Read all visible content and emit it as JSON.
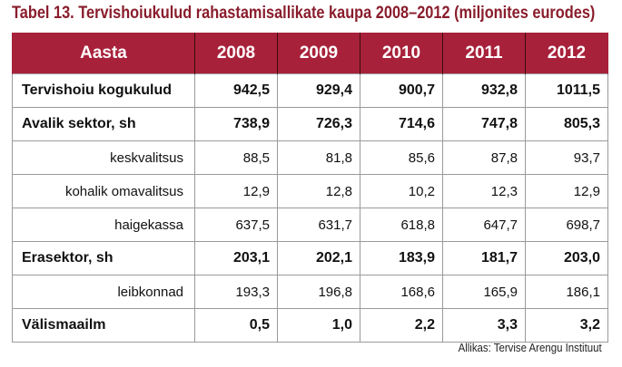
{
  "title": "Tabel 13. Tervishoiukulud rahastamisallikate kaupa 2008–2012 (miljonites eurodes)",
  "header": [
    "Aasta",
    "2008",
    "2009",
    "2010",
    "2011",
    "2012"
  ],
  "rows": [
    {
      "label": "Tervishoiu kogukulud",
      "bold": true,
      "values": [
        "942,5",
        "929,4",
        "900,7",
        "932,8",
        "1011,5"
      ]
    },
    {
      "label": "Avalik sektor, sh",
      "bold": true,
      "values": [
        "738,9",
        "726,3",
        "714,6",
        "747,8",
        "805,3"
      ]
    },
    {
      "label": "keskvalitsus",
      "bold": false,
      "values": [
        "88,5",
        "81,8",
        "85,6",
        "87,8",
        "93,7"
      ]
    },
    {
      "label": "kohalik omavalitsus",
      "bold": false,
      "values": [
        "12,9",
        "12,8",
        "10,2",
        "12,3",
        "12,9"
      ]
    },
    {
      "label": "haigekassa",
      "bold": false,
      "values": [
        "637,5",
        "631,7",
        "618,8",
        "647,7",
        "698,7"
      ]
    },
    {
      "label": "Erasektor, sh",
      "bold": true,
      "values": [
        "203,1",
        "202,1",
        "183,9",
        "181,7",
        "203,0"
      ]
    },
    {
      "label": "leibkonnad",
      "bold": false,
      "values": [
        "193,3",
        "196,8",
        "168,6",
        "165,9",
        "186,1"
      ]
    },
    {
      "label": "Välismaailm",
      "bold": true,
      "values": [
        "0,5",
        "1,0",
        "2,2",
        "3,3",
        "3,2"
      ]
    }
  ],
  "source": "Allikas: Tervise Arengu Instituut",
  "colors": {
    "title": "#8a1d2c",
    "header_bg": "#a8213a",
    "border": "#9a9a9a"
  }
}
